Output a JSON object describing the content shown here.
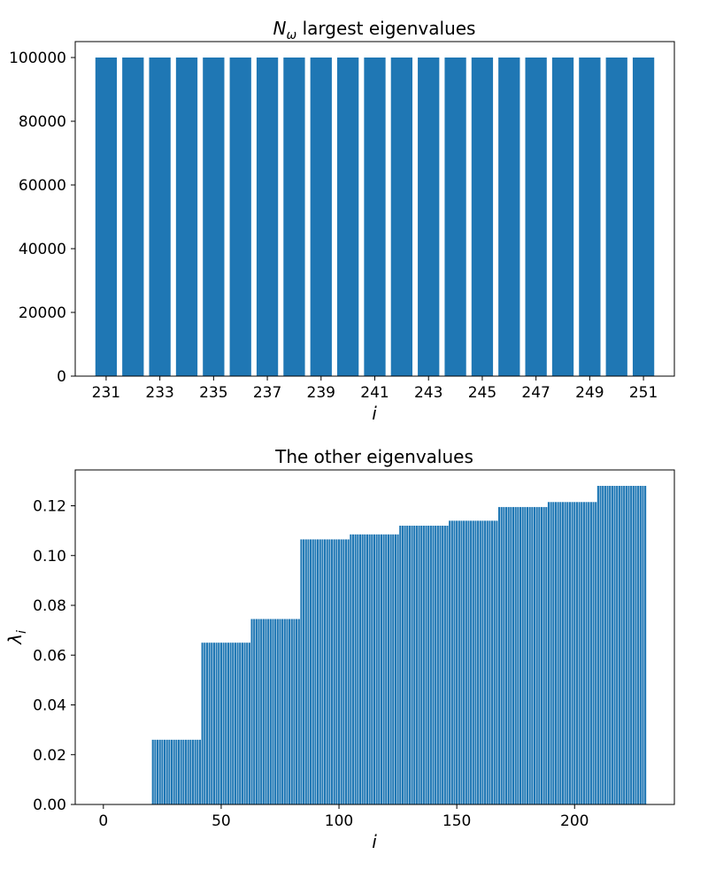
{
  "chart_data": [
    {
      "type": "bar",
      "title_main": "N",
      "title_sub": "ω",
      "title_rest": " largest eigenvalues",
      "xlabel": "i",
      "ylabel": "",
      "bar_color": "#1f77b4",
      "x": [
        231,
        232,
        233,
        234,
        235,
        236,
        237,
        238,
        239,
        240,
        241,
        242,
        243,
        244,
        245,
        246,
        247,
        248,
        249,
        250,
        251
      ],
      "values": [
        100000,
        100000,
        100000,
        100000,
        100000,
        100000,
        100000,
        100000,
        100000,
        100000,
        100000,
        100000,
        100000,
        100000,
        100000,
        100000,
        100000,
        100000,
        100000,
        100000,
        100000
      ],
      "xlim": [
        229.85,
        252.15
      ],
      "ylim": [
        0,
        105000
      ],
      "xticks": [
        231,
        233,
        235,
        237,
        239,
        241,
        243,
        245,
        247,
        249,
        251
      ],
      "yticks": [
        0,
        20000,
        40000,
        60000,
        80000,
        100000
      ]
    },
    {
      "type": "bar",
      "title": "The other eigenvalues",
      "xlabel": "i",
      "ylabel_main": "λ",
      "ylabel_sub": "i",
      "bar_color": "#1f77b4",
      "steps": [
        {
          "from": 0,
          "to": 20,
          "value": 0.0
        },
        {
          "from": 21,
          "to": 41,
          "value": 0.026
        },
        {
          "from": 42,
          "to": 62,
          "value": 0.065
        },
        {
          "from": 63,
          "to": 83,
          "value": 0.0745
        },
        {
          "from": 84,
          "to": 104,
          "value": 0.1065
        },
        {
          "from": 105,
          "to": 125,
          "value": 0.1085
        },
        {
          "from": 126,
          "to": 146,
          "value": 0.112
        },
        {
          "from": 147,
          "to": 167,
          "value": 0.114
        },
        {
          "from": 168,
          "to": 188,
          "value": 0.1195
        },
        {
          "from": 189,
          "to": 209,
          "value": 0.1215
        },
        {
          "from": 210,
          "to": 230,
          "value": 0.128
        }
      ],
      "xlim": [
        -11.95,
        242.35
      ],
      "ylim": [
        0,
        0.1344
      ],
      "xticks": [
        0,
        50,
        100,
        150,
        200
      ],
      "yticks": [
        0.0,
        0.02,
        0.04,
        0.06,
        0.08,
        0.1,
        0.12
      ],
      "ytick_labels": [
        "0.00",
        "0.02",
        "0.04",
        "0.06",
        "0.08",
        "0.10",
        "0.12"
      ]
    }
  ]
}
